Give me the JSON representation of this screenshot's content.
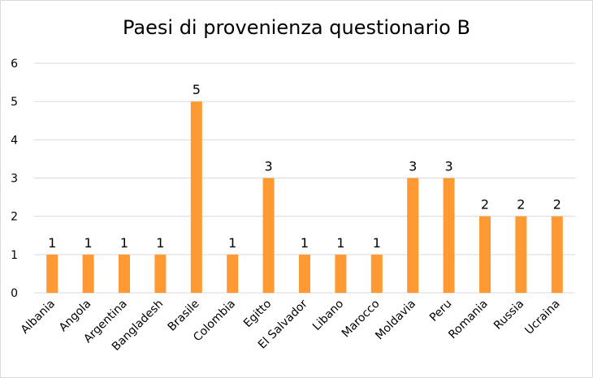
{
  "chart_data": {
    "type": "bar",
    "title": "Paesi di provenienza questionario B",
    "xlabel": "",
    "ylabel": "",
    "ylim": [
      0,
      6
    ],
    "yticks": [
      0,
      1,
      2,
      3,
      4,
      5,
      6
    ],
    "grid": true,
    "legend": "none",
    "bar_color": "#ff9933",
    "gridline_color": "#d9d9d9",
    "categories": [
      "Albania",
      "Angola",
      "Argentina",
      "Bangladesh",
      "Brasile",
      "Colombia",
      "Egitto",
      "El Salvador",
      "Libano",
      "Marocco",
      "Moldavia",
      "Peru",
      "Romania",
      "Russia",
      "Ucraina"
    ],
    "values": [
      1,
      1,
      1,
      1,
      5,
      1,
      3,
      1,
      1,
      1,
      3,
      3,
      2,
      2,
      2
    ]
  }
}
